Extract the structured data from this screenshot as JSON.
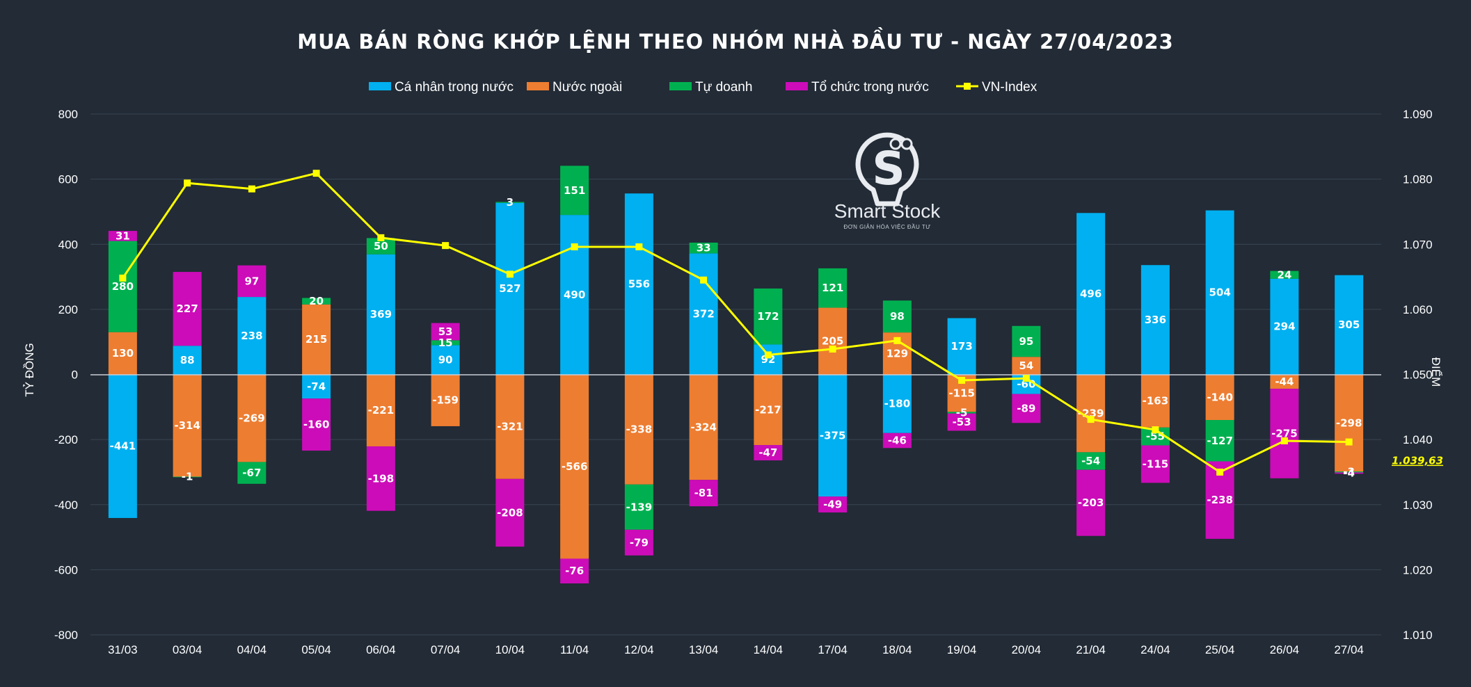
{
  "chart_data": {
    "type": "bar",
    "stacked": true,
    "title": "MUA BÁN RÒNG KHỚP LỆNH THEO NHÓM NHÀ ĐẦU TƯ - NGÀY 27/04/2023",
    "ylabel": "TỶ ĐỒNG",
    "y2label": "ĐIỂM",
    "ylim": [
      -800,
      800
    ],
    "y2lim": [
      1010,
      1090
    ],
    "yticks": [
      800,
      600,
      400,
      200,
      0,
      -200,
      -400,
      -600,
      -800
    ],
    "y2ticks": [
      "1.090",
      "1.080",
      "1.070",
      "1.060",
      "1.050",
      "1.040",
      "1.030",
      "1.020",
      "1.010"
    ],
    "grid": true,
    "legend_position": "top",
    "categories": [
      "31/03",
      "03/04",
      "04/04",
      "05/04",
      "06/04",
      "07/04",
      "10/04",
      "11/04",
      "12/04",
      "13/04",
      "14/04",
      "17/04",
      "18/04",
      "19/04",
      "20/04",
      "21/04",
      "24/04",
      "25/04",
      "26/04",
      "27/04"
    ],
    "series": [
      {
        "name": "Cá nhân trong nước",
        "color": "#00b0f0",
        "values": [
          -441,
          88,
          238,
          -74,
          369,
          90,
          527,
          490,
          556,
          372,
          92,
          -375,
          -180,
          173,
          -60,
          496,
          336,
          504,
          294,
          305
        ]
      },
      {
        "name": "Nước ngoài",
        "color": "#ed7d31",
        "values": [
          130,
          -314,
          -269,
          215,
          -221,
          -159,
          -321,
          -566,
          -338,
          -324,
          -217,
          205,
          129,
          -115,
          54,
          -239,
          -163,
          -140,
          -44,
          -298
        ]
      },
      {
        "name": "Tự doanh",
        "color": "#00b050",
        "values": [
          280,
          -1,
          -67,
          20,
          50,
          15,
          3,
          151,
          -139,
          33,
          172,
          121,
          98,
          -5,
          95,
          -54,
          -55,
          -127,
          24,
          -3
        ]
      },
      {
        "name": "Tổ chức trong nước",
        "color": "#cc0cb8",
        "values": [
          31,
          227,
          97,
          -160,
          -198,
          53,
          -208,
          -76,
          -79,
          -81,
          -47,
          -49,
          -46,
          -53,
          -89,
          -203,
          -115,
          -238,
          -275,
          -4
        ]
      }
    ],
    "line": {
      "name": "VN-Index",
      "color": "#ffff00",
      "values": [
        1064.8,
        1079.4,
        1078.5,
        1080.9,
        1071.0,
        1069.8,
        1065.4,
        1069.6,
        1069.6,
        1064.5,
        1053.0,
        1053.9,
        1055.2,
        1049.1,
        1049.4,
        1043.1,
        1041.5,
        1035.0,
        1039.8,
        1039.63
      ],
      "last_label": "1.039,63"
    },
    "watermark": {
      "name": "Smart Stock",
      "tagline": "ĐƠN GIẢN HÓA VIỆC ĐẦU TƯ"
    }
  }
}
